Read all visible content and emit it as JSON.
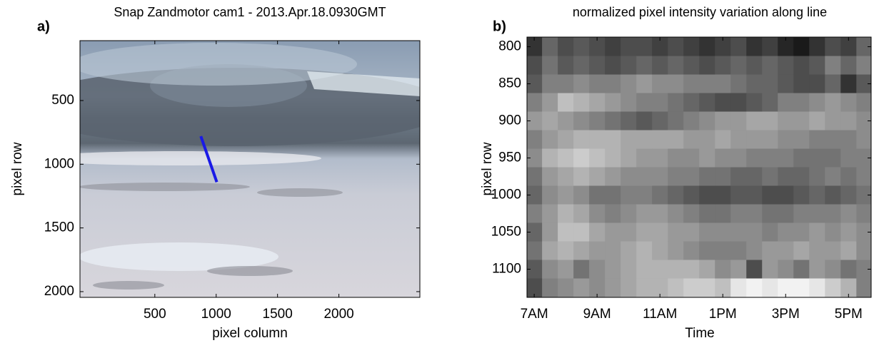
{
  "chart_data": [
    {
      "type": "image",
      "panel_label": "a)",
      "title": "Snap Zandmotor cam1 - 2013.Apr.18.0930GMT",
      "x_label": "pixel column",
      "y_label": "pixel row",
      "xlim": [
        -110,
        2660
      ],
      "ylim": [
        2045,
        30
      ],
      "xticks": [
        500,
        1000,
        1500,
        2000
      ],
      "yticks": [
        500,
        1000,
        1500,
        2000
      ],
      "overlay": {
        "x": [
          875,
          1005
        ],
        "y": [
          780,
          1140
        ],
        "color": "#1a1ae6"
      }
    },
    {
      "type": "heatmap",
      "panel_label": "b)",
      "title": "normalized pixel intensity variation along line",
      "x_label": "Time",
      "y_label": "pixel row",
      "xlim": [
        6.77,
        17.72
      ],
      "ylim": [
        1138,
        787
      ],
      "xticks": [
        {
          "value": 7,
          "label": "7AM"
        },
        {
          "value": 9,
          "label": "9AM"
        },
        {
          "value": 11,
          "label": "11AM"
        },
        {
          "value": 13,
          "label": "1PM"
        },
        {
          "value": 15,
          "label": "3PM"
        },
        {
          "value": 17,
          "label": "5PM"
        }
      ],
      "yticks": [
        800,
        850,
        900,
        950,
        1000,
        1050,
        1100
      ],
      "x": [
        7,
        7.5,
        8,
        8.5,
        9,
        9.5,
        10,
        10.5,
        11,
        11.5,
        12,
        12.5,
        13,
        13.5,
        14,
        14.5,
        15,
        15.5,
        16,
        16.5,
        17,
        17.5
      ],
      "y": [
        800,
        825,
        850,
        875,
        900,
        925,
        950,
        975,
        1000,
        1025,
        1050,
        1075,
        1100,
        1125
      ],
      "values": [
        [
          0.2,
          0.4,
          0.3,
          0.35,
          0.3,
          0.25,
          0.3,
          0.3,
          0.25,
          0.3,
          0.25,
          0.2,
          0.25,
          0.3,
          0.2,
          0.25,
          0.15,
          0.1,
          0.2,
          0.3,
          0.25,
          0.4
        ],
        [
          0.3,
          0.45,
          0.35,
          0.4,
          0.35,
          0.3,
          0.35,
          0.4,
          0.35,
          0.4,
          0.35,
          0.3,
          0.35,
          0.4,
          0.35,
          0.4,
          0.35,
          0.3,
          0.35,
          0.5,
          0.4,
          0.5
        ],
        [
          0.35,
          0.5,
          0.5,
          0.55,
          0.5,
          0.5,
          0.55,
          0.6,
          0.55,
          0.55,
          0.5,
          0.5,
          0.5,
          0.45,
          0.4,
          0.4,
          0.35,
          0.3,
          0.3,
          0.4,
          0.2,
          0.35
        ],
        [
          0.5,
          0.6,
          0.75,
          0.7,
          0.65,
          0.6,
          0.55,
          0.5,
          0.5,
          0.45,
          0.4,
          0.35,
          0.3,
          0.3,
          0.35,
          0.4,
          0.5,
          0.5,
          0.55,
          0.6,
          0.55,
          0.5
        ],
        [
          0.6,
          0.65,
          0.6,
          0.55,
          0.5,
          0.45,
          0.4,
          0.35,
          0.4,
          0.45,
          0.5,
          0.55,
          0.6,
          0.6,
          0.65,
          0.65,
          0.6,
          0.6,
          0.65,
          0.6,
          0.6,
          0.55
        ],
        [
          0.5,
          0.6,
          0.65,
          0.7,
          0.7,
          0.7,
          0.65,
          0.65,
          0.65,
          0.65,
          0.6,
          0.6,
          0.65,
          0.6,
          0.6,
          0.6,
          0.55,
          0.55,
          0.5,
          0.5,
          0.5,
          0.55
        ],
        [
          0.55,
          0.7,
          0.75,
          0.8,
          0.75,
          0.7,
          0.65,
          0.6,
          0.6,
          0.55,
          0.55,
          0.6,
          0.55,
          0.55,
          0.5,
          0.5,
          0.5,
          0.45,
          0.45,
          0.45,
          0.5,
          0.5
        ],
        [
          0.45,
          0.6,
          0.65,
          0.7,
          0.65,
          0.6,
          0.55,
          0.55,
          0.55,
          0.5,
          0.5,
          0.45,
          0.45,
          0.4,
          0.4,
          0.45,
          0.4,
          0.4,
          0.45,
          0.5,
          0.45,
          0.5
        ],
        [
          0.4,
          0.55,
          0.6,
          0.55,
          0.45,
          0.45,
          0.5,
          0.5,
          0.45,
          0.4,
          0.35,
          0.3,
          0.3,
          0.35,
          0.35,
          0.3,
          0.3,
          0.35,
          0.4,
          0.35,
          0.4,
          0.45
        ],
        [
          0.5,
          0.6,
          0.7,
          0.65,
          0.55,
          0.5,
          0.55,
          0.6,
          0.6,
          0.55,
          0.5,
          0.45,
          0.45,
          0.5,
          0.5,
          0.45,
          0.45,
          0.5,
          0.5,
          0.5,
          0.55,
          0.5
        ],
        [
          0.4,
          0.6,
          0.75,
          0.75,
          0.65,
          0.6,
          0.6,
          0.65,
          0.65,
          0.6,
          0.6,
          0.55,
          0.55,
          0.55,
          0.55,
          0.5,
          0.55,
          0.55,
          0.6,
          0.55,
          0.6,
          0.55
        ],
        [
          0.45,
          0.65,
          0.7,
          0.65,
          0.6,
          0.6,
          0.65,
          0.7,
          0.65,
          0.6,
          0.55,
          0.5,
          0.5,
          0.5,
          0.55,
          0.6,
          0.6,
          0.65,
          0.6,
          0.6,
          0.65,
          0.55
        ],
        [
          0.35,
          0.55,
          0.6,
          0.45,
          0.55,
          0.6,
          0.65,
          0.7,
          0.7,
          0.7,
          0.7,
          0.65,
          0.55,
          0.6,
          0.3,
          0.6,
          0.55,
          0.45,
          0.6,
          0.55,
          0.45,
          0.5
        ],
        [
          0.3,
          0.5,
          0.55,
          0.6,
          0.55,
          0.6,
          0.65,
          0.7,
          0.7,
          0.75,
          0.8,
          0.8,
          0.75,
          0.9,
          0.95,
          0.9,
          0.95,
          0.95,
          0.9,
          0.8,
          0.7,
          0.5
        ]
      ]
    }
  ]
}
